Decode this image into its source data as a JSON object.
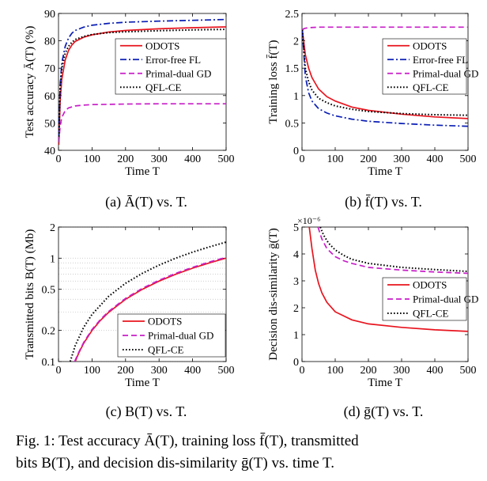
{
  "figure_caption": {
    "line1": "Fig. 1: Test accuracy Ā(T), training loss f̄(T), transmitted",
    "line2": "bits B(T), and decision dis-similarity ḡ(T) vs. time T."
  },
  "subcaptions": [
    "(a) Ā(T) vs. T.",
    "(b) f̄(T) vs. T.",
    "(c) B(T) vs. T.",
    "(d) ḡ(T) vs. T."
  ],
  "colors": {
    "ODOTS": "#e8141e",
    "Error-free FL": "#0a1eb4",
    "Primal-dual GD": "#c81ec8",
    "QFL-CE": "#000000"
  },
  "chart_data": [
    {
      "type": "line",
      "title": "",
      "xlabel": "Time T",
      "ylabel": "Test accuracy Ā(T) (%)",
      "xlim": [
        0,
        500
      ],
      "ylim": [
        40,
        90
      ],
      "xticks": [
        0,
        100,
        200,
        300,
        400,
        500
      ],
      "yticks": [
        40,
        50,
        60,
        70,
        80,
        90
      ],
      "yscale": "linear",
      "legend_position": "center-right",
      "series": [
        {
          "name": "ODOTS",
          "style": "solid",
          "x": [
            1,
            5,
            10,
            20,
            30,
            40,
            50,
            75,
            100,
            150,
            200,
            300,
            400,
            500
          ],
          "y": [
            42,
            58,
            66,
            73,
            76.5,
            78.5,
            79.8,
            81.3,
            82.2,
            83.2,
            83.8,
            84.4,
            84.8,
            85.1
          ]
        },
        {
          "name": "Error-free FL",
          "style": "dashdot",
          "x": [
            1,
            5,
            10,
            20,
            30,
            40,
            50,
            75,
            100,
            150,
            200,
            300,
            400,
            500
          ],
          "y": [
            45,
            64,
            72,
            78,
            81,
            82.8,
            83.8,
            85,
            85.7,
            86.4,
            86.8,
            87.2,
            87.5,
            87.8
          ]
        },
        {
          "name": "Primal-dual GD",
          "style": "dashed",
          "x": [
            1,
            5,
            10,
            20,
            30,
            50,
            75,
            100,
            150,
            200,
            300,
            400,
            500
          ],
          "y": [
            43,
            49,
            52,
            54.5,
            55.5,
            56.2,
            56.5,
            56.7,
            56.8,
            56.9,
            57,
            57,
            57
          ]
        },
        {
          "name": "QFL-CE",
          "style": "dotted",
          "x": [
            1,
            5,
            10,
            20,
            30,
            40,
            50,
            75,
            100,
            150,
            200,
            300,
            400,
            500
          ],
          "y": [
            45,
            63,
            70,
            75.5,
            78,
            79.5,
            80.5,
            81.6,
            82.3,
            83,
            83.3,
            83.7,
            84,
            84.2
          ]
        }
      ]
    },
    {
      "type": "line",
      "title": "",
      "xlabel": "Time T",
      "ylabel": "Training loss f̄(T)",
      "xlim": [
        0,
        500
      ],
      "ylim": [
        0,
        2.5
      ],
      "xticks": [
        0,
        100,
        200,
        300,
        400,
        500
      ],
      "yticks": [
        0,
        0.5,
        1,
        1.5,
        2,
        2.5
      ],
      "yscale": "linear",
      "legend_position": "top-right",
      "series": [
        {
          "name": "ODOTS",
          "style": "solid",
          "x": [
            1,
            10,
            20,
            30,
            50,
            75,
            100,
            150,
            200,
            300,
            400,
            500
          ],
          "y": [
            2.2,
            1.75,
            1.5,
            1.33,
            1.12,
            0.98,
            0.9,
            0.79,
            0.73,
            0.66,
            0.61,
            0.58
          ]
        },
        {
          "name": "Error-free FL",
          "style": "dashdot",
          "x": [
            1,
            10,
            20,
            30,
            50,
            75,
            100,
            150,
            200,
            300,
            400,
            500
          ],
          "y": [
            2.2,
            1.35,
            1.05,
            0.9,
            0.76,
            0.68,
            0.63,
            0.57,
            0.53,
            0.49,
            0.46,
            0.44
          ]
        },
        {
          "name": "Primal-dual GD",
          "style": "dashed",
          "x": [
            1,
            5,
            10,
            20,
            50,
            100,
            200,
            300,
            400,
            500
          ],
          "y": [
            2.2,
            2.22,
            2.23,
            2.24,
            2.25,
            2.25,
            2.25,
            2.25,
            2.25,
            2.25
          ]
        },
        {
          "name": "QFL-CE",
          "style": "dotted",
          "x": [
            1,
            10,
            20,
            30,
            50,
            75,
            100,
            150,
            200,
            300,
            400,
            500
          ],
          "y": [
            2.2,
            1.5,
            1.25,
            1.1,
            0.95,
            0.87,
            0.81,
            0.75,
            0.71,
            0.67,
            0.65,
            0.64
          ]
        }
      ]
    },
    {
      "type": "line",
      "title": "",
      "xlabel": "Time T",
      "ylabel": "Transmitted bits B(T) (Mb)",
      "xlim": [
        0,
        500
      ],
      "ylim": [
        0.1,
        2
      ],
      "xticks": [
        0,
        100,
        200,
        300,
        400,
        500
      ],
      "yticks": [
        0.1,
        0.2,
        0.5,
        1,
        2
      ],
      "yscale": "log",
      "grid": "horizontal dotted lines on y axis",
      "legend_position": "bottom-right",
      "series": [
        {
          "name": "ODOTS",
          "style": "solid",
          "x": [
            50,
            60,
            75,
            100,
            125,
            150,
            200,
            250,
            300,
            350,
            400,
            450,
            500
          ],
          "y": [
            0.1,
            0.12,
            0.15,
            0.2,
            0.25,
            0.3,
            0.4,
            0.5,
            0.6,
            0.7,
            0.8,
            0.9,
            1.0
          ]
        },
        {
          "name": "Primal-dual GD",
          "style": "dashed",
          "x": [
            48,
            60,
            75,
            100,
            125,
            150,
            200,
            250,
            300,
            350,
            400,
            450,
            500
          ],
          "y": [
            0.1,
            0.122,
            0.153,
            0.204,
            0.255,
            0.306,
            0.408,
            0.51,
            0.612,
            0.714,
            0.816,
            0.918,
            1.02
          ]
        },
        {
          "name": "QFL-CE",
          "style": "dotted",
          "x": [
            35,
            50,
            75,
            100,
            150,
            200,
            250,
            300,
            350,
            400,
            450,
            500
          ],
          "y": [
            0.1,
            0.143,
            0.214,
            0.286,
            0.429,
            0.571,
            0.714,
            0.857,
            1.0,
            1.143,
            1.286,
            1.43
          ]
        }
      ]
    },
    {
      "type": "line",
      "title": "",
      "xlabel": "Time T",
      "ylabel": "Decision dis-similarity ḡ(T)",
      "y_exponent": "×10⁻⁶",
      "xlim": [
        0,
        500
      ],
      "ylim": [
        0,
        5
      ],
      "xticks": [
        0,
        100,
        200,
        300,
        400,
        500
      ],
      "yticks": [
        0,
        1,
        2,
        3,
        4,
        5
      ],
      "yscale": "linear",
      "legend_position": "center-right",
      "series": [
        {
          "name": "ODOTS",
          "style": "solid",
          "x": [
            22,
            30,
            40,
            50,
            60,
            75,
            100,
            150,
            200,
            300,
            400,
            500
          ],
          "y": [
            5,
            4.2,
            3.4,
            2.9,
            2.55,
            2.2,
            1.85,
            1.55,
            1.4,
            1.27,
            1.18,
            1.12
          ]
        },
        {
          "name": "Primal-dual GD",
          "style": "dashed",
          "x": [
            48,
            60,
            75,
            100,
            125,
            150,
            200,
            300,
            400,
            500
          ],
          "y": [
            5,
            4.55,
            4.2,
            3.9,
            3.75,
            3.65,
            3.5,
            3.4,
            3.33,
            3.28
          ]
        },
        {
          "name": "QFL-CE",
          "style": "dotted",
          "x": [
            55,
            65,
            80,
            100,
            125,
            150,
            200,
            300,
            400,
            500
          ],
          "y": [
            5,
            4.7,
            4.4,
            4.15,
            3.95,
            3.8,
            3.65,
            3.5,
            3.42,
            3.35
          ]
        }
      ]
    }
  ]
}
